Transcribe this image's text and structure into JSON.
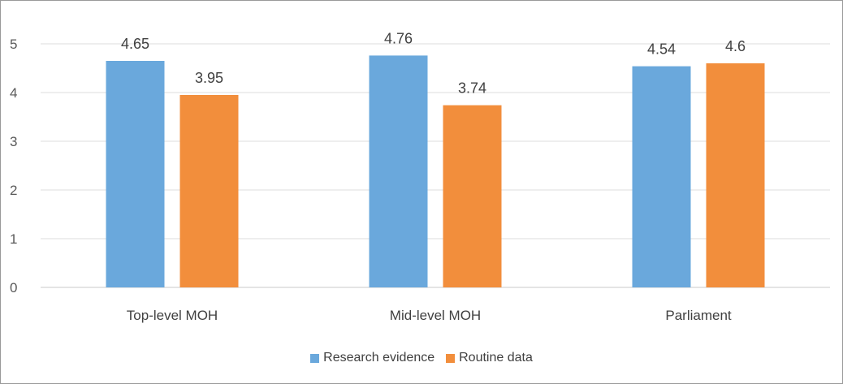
{
  "chart_data": {
    "type": "bar",
    "title": "",
    "xlabel": "",
    "ylabel": "",
    "categories": [
      "Top-level MOH",
      "Mid-level MOH",
      "Parliament"
    ],
    "series": [
      {
        "name": "Research evidence",
        "color": "#6aa8dc",
        "values": [
          4.65,
          4.76,
          4.54
        ],
        "labels": [
          "4.65",
          "4.76",
          "4.54"
        ]
      },
      {
        "name": "Routine data",
        "color": "#f28e3c",
        "values": [
          3.95,
          3.74,
          4.6
        ],
        "labels": [
          "3.95",
          "3.74",
          "4.6"
        ]
      }
    ],
    "yticks": [
      0,
      1,
      2,
      3,
      4,
      5
    ],
    "ylim": [
      0,
      5.2
    ],
    "grid": true,
    "legend_position": "bottom"
  }
}
